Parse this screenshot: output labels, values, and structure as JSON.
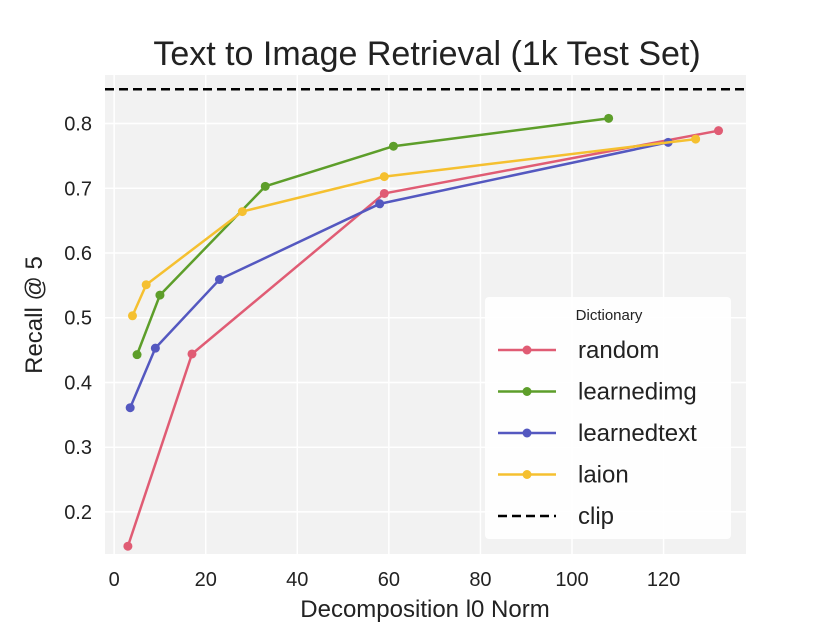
{
  "chart_data": {
    "type": "line",
    "title": "Text to Image Retrieval (1k Test Set)",
    "xlabel": "Decomposition l0 Norm",
    "ylabel": "Recall @ 5",
    "xlim": [
      -2,
      138
    ],
    "ylim": [
      0.135,
      0.875
    ],
    "x_ticks": [
      0,
      20,
      40,
      60,
      80,
      100,
      120
    ],
    "y_ticks": [
      0.2,
      0.3,
      0.4,
      0.5,
      0.6,
      0.7,
      0.8
    ],
    "grid": true,
    "legend": {
      "title": "Dictionary",
      "position": "lower-right"
    },
    "series": [
      {
        "name": "random",
        "color": "#e05c74",
        "x": [
          3,
          17,
          59,
          132
        ],
        "y": [
          0.147,
          0.444,
          0.692,
          0.789
        ]
      },
      {
        "name": "learnedimg",
        "color": "#5d9e2a",
        "x": [
          5,
          10,
          33,
          61,
          108
        ],
        "y": [
          0.443,
          0.535,
          0.703,
          0.765,
          0.808
        ]
      },
      {
        "name": "learnedtext",
        "color": "#5458c0",
        "x": [
          3.5,
          9,
          23,
          58,
          121
        ],
        "y": [
          0.361,
          0.453,
          0.559,
          0.676,
          0.771
        ]
      },
      {
        "name": "laion",
        "color": "#f5c030",
        "x": [
          4,
          7,
          28,
          59,
          127
        ],
        "y": [
          0.503,
          0.551,
          0.664,
          0.718,
          0.776
        ]
      }
    ],
    "reference_line": {
      "name": "clip",
      "y": 0.853,
      "color": "#000000",
      "style": "dashed"
    }
  }
}
